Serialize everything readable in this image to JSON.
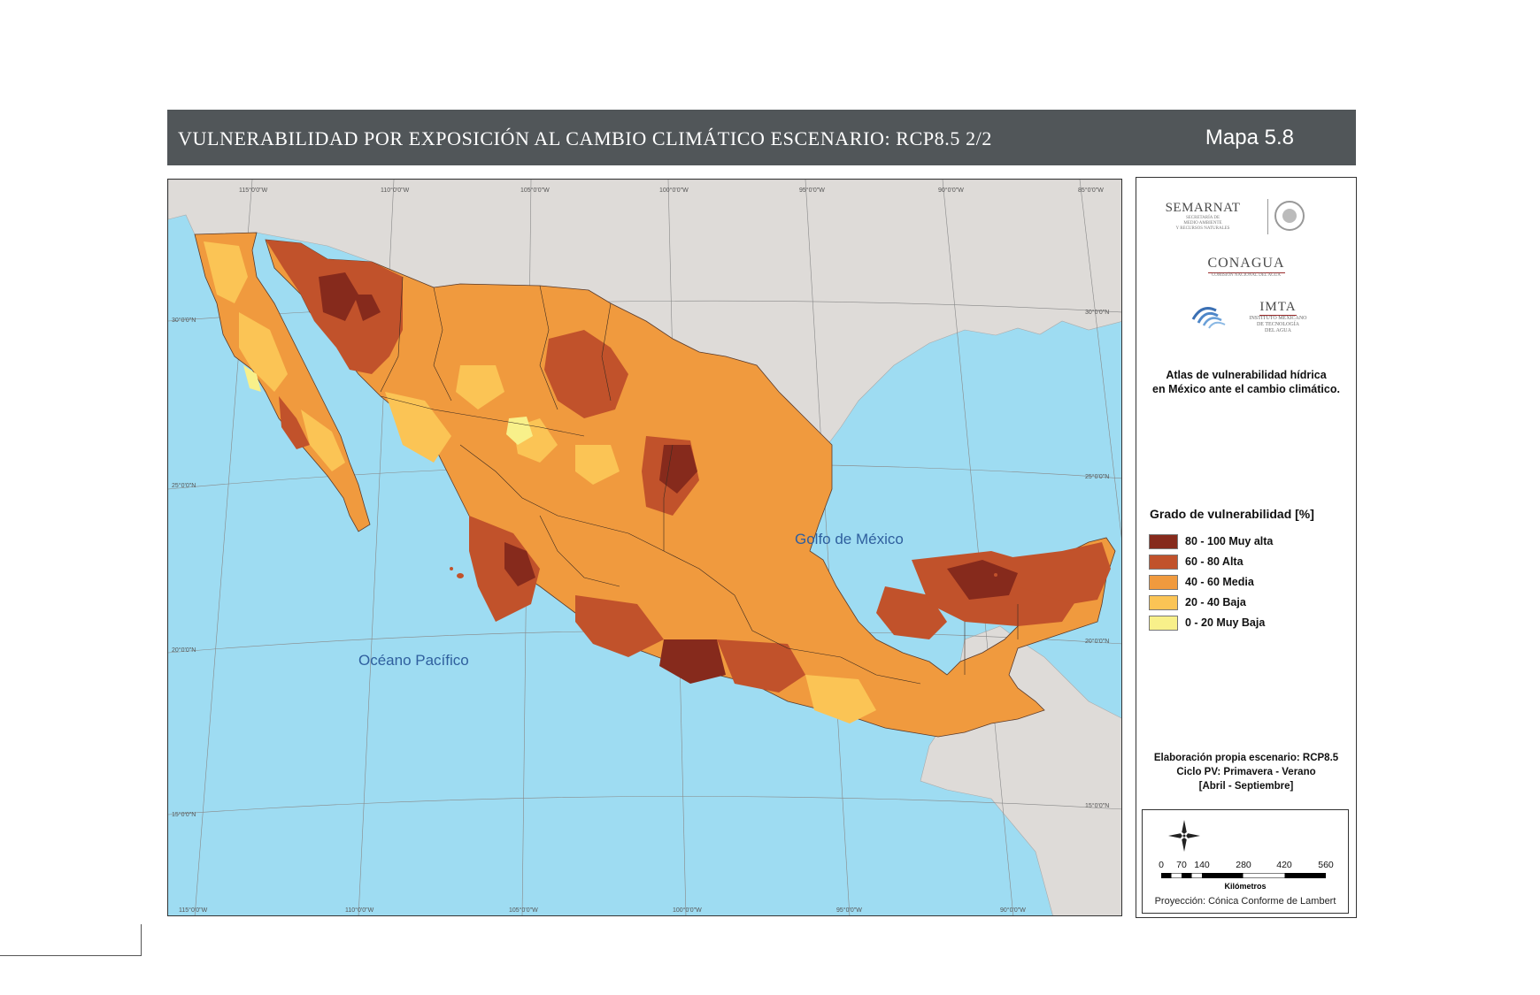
{
  "header": {
    "title": "VULNERABILIDAD POR EXPOSICIÓN AL CAMBIO CLIMÁTICO ESCENARIO: RCP8.5 2/2",
    "map_number": "Mapa 5.8",
    "background_color": "#515659"
  },
  "map": {
    "labels": {
      "pacific": "Océano Pacífico",
      "gulf": "Golfo de México"
    },
    "longitude_labels_top": [
      "115°0'0\"W",
      "110°0'0\"W",
      "105°0'0\"W",
      "100°0'0\"W",
      "95°0'0\"W",
      "90°0'0\"W",
      "85°0'0\"W"
    ],
    "longitude_labels_bottom": [
      "115°0'0\"W",
      "110°0'0\"W",
      "105°0'0\"W",
      "100°0'0\"W",
      "95°0'0\"W",
      "90°0'0\"W"
    ],
    "latitude_labels_left": [
      "30°0'0\"N",
      "25°0'0\"N",
      "20°0'0\"N",
      "15°0'0\"N"
    ],
    "latitude_labels_right": [
      "30°0'0\"N",
      "25°0'0\"N",
      "20°0'0\"N",
      "15°0'0\"N"
    ],
    "colors": {
      "ocean": "#9edcf2",
      "land_other": "#dedbd8"
    }
  },
  "sidebar": {
    "logos": {
      "semarnat": "SEMARNAT",
      "semarnat_sub": [
        "SECRETARÍA DE",
        "MEDIO AMBIENTE",
        "Y RECURSOS NATURALES"
      ],
      "conagua": "CONAGUA",
      "conagua_sub": "COMISIÓN NACIONAL DEL AGUA",
      "imta": "IMTA",
      "imta_sub": [
        "INSTITUTO MEXICANO",
        "DE TECNOLOGÍA",
        "DEL AGUA"
      ]
    },
    "atlas_title": [
      "Atlas de vulnerabilidad  hídrica",
      "en México ante el cambio climático."
    ],
    "legend": {
      "title": "Grado de vulnerabilidad [%]",
      "items": [
        {
          "label": "80 - 100 Muy alta",
          "color": "#862a1c"
        },
        {
          "label": "60 - 80 Alta",
          "color": "#c1522b"
        },
        {
          "label": "40 - 60 Media",
          "color": "#f09a3e"
        },
        {
          "label": "20 - 40 Baja",
          "color": "#fbc455"
        },
        {
          "label": "0 - 20 Muy Baja",
          "color": "#f8f08a"
        }
      ]
    },
    "credits": [
      "Elaboración propia escenario: RCP8.5",
      "Ciclo PV: Primavera - Verano",
      "[Abril - Septiembre]"
    ],
    "scale": {
      "ticks": [
        "0",
        "70",
        "140",
        "280",
        "420",
        "560"
      ],
      "unit": "Kilómetros",
      "projection": "Proyección: Cónica Conforme de Lambert"
    }
  }
}
